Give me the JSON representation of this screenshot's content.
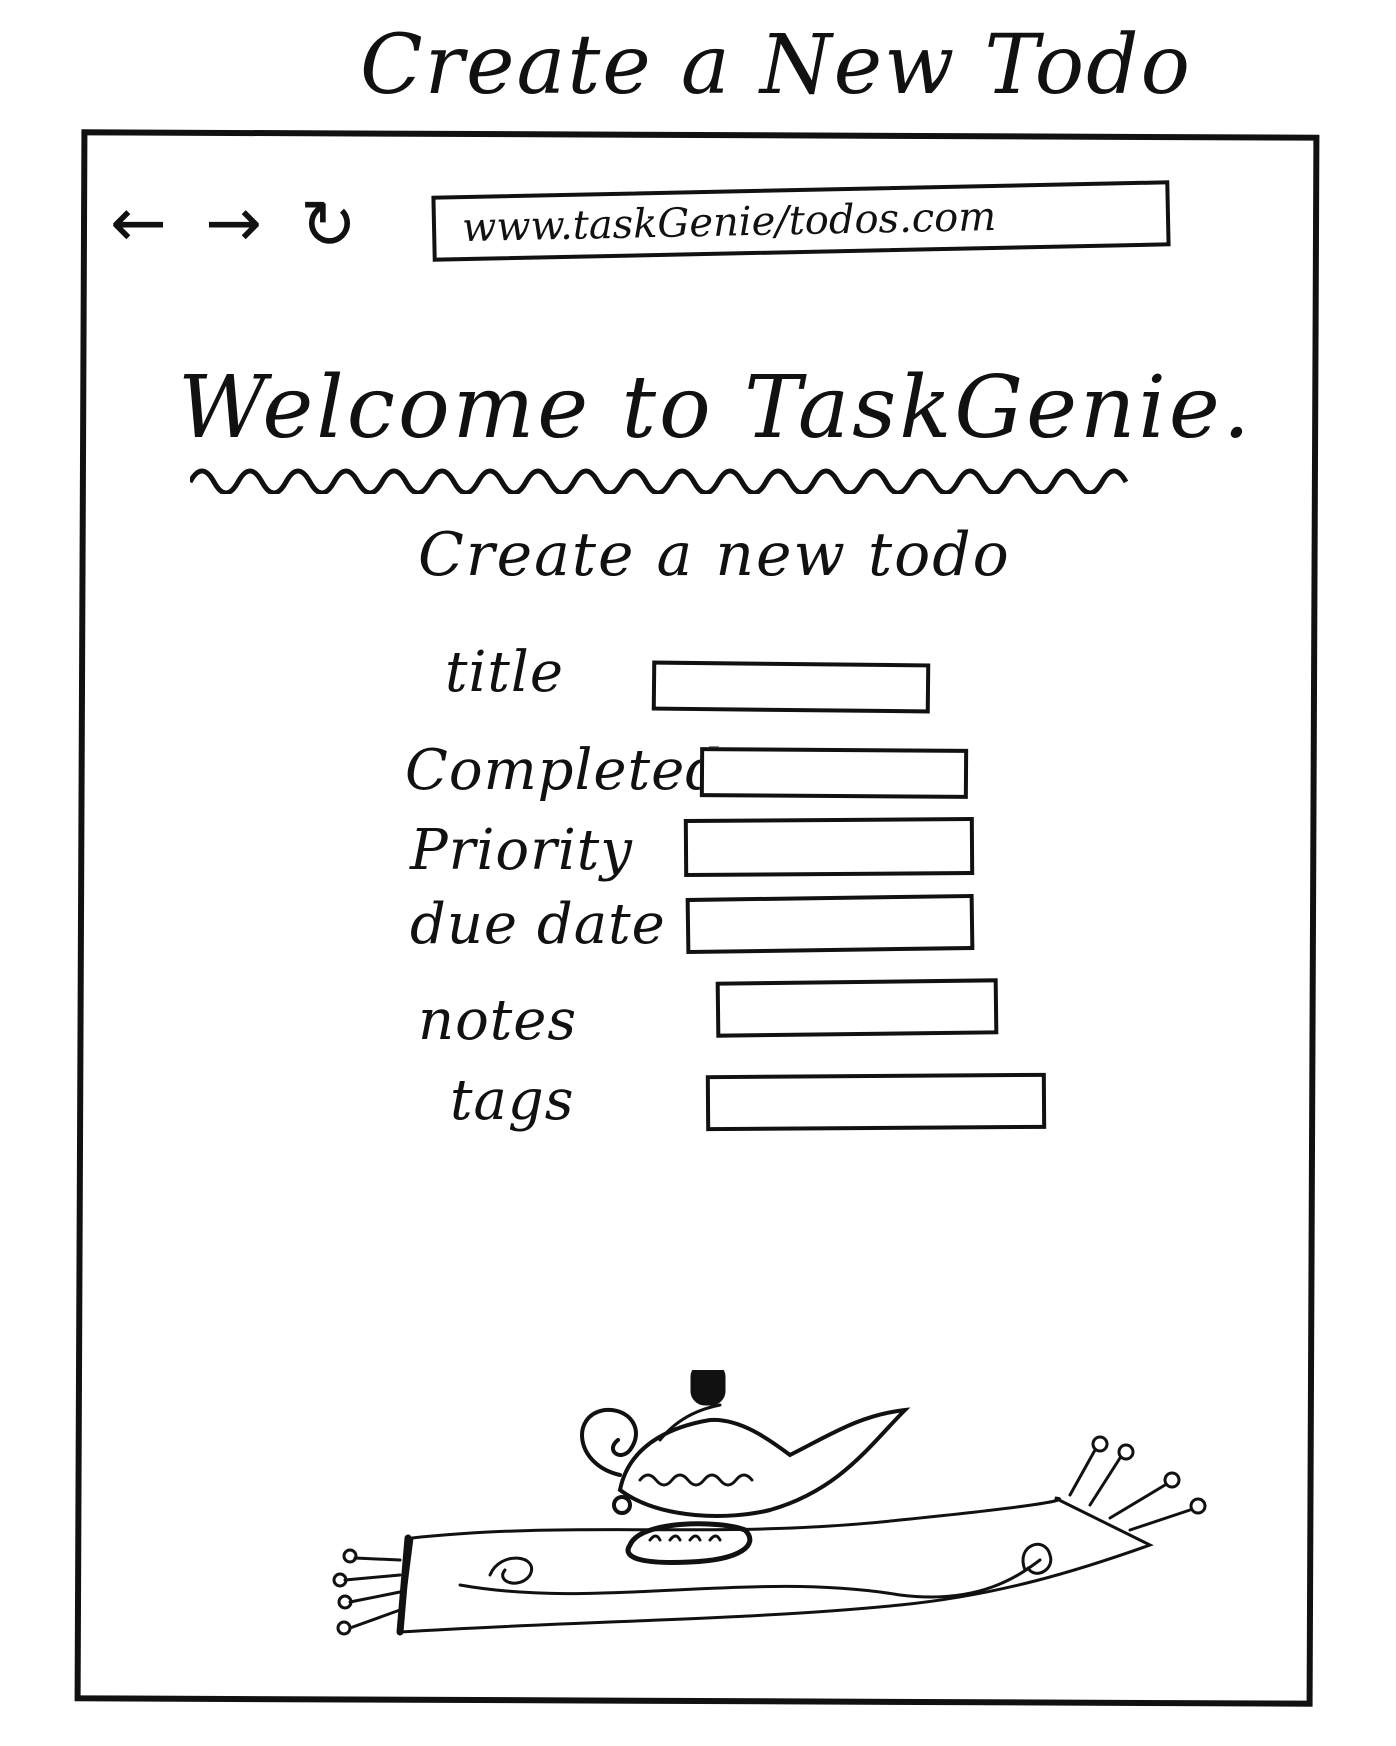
{
  "page": {
    "title": "Create a New Todo"
  },
  "browser": {
    "back_glyph": "←",
    "forward_glyph": "→",
    "reload_glyph": "↻",
    "url": "www.taskGenie/todos.com"
  },
  "main": {
    "welcome": "Welcome to TaskGenie.",
    "form_title": "Create a new todo",
    "fields": [
      {
        "label": "title",
        "value": ""
      },
      {
        "label": "Completed",
        "value": ""
      },
      {
        "label": "Priority",
        "value": ""
      },
      {
        "label": "due date",
        "value": ""
      },
      {
        "label": "notes",
        "value": ""
      },
      {
        "label": "tags",
        "value": ""
      }
    ]
  },
  "illustration": {
    "icon": "genie-lamp-on-flying-carpet-icon"
  }
}
